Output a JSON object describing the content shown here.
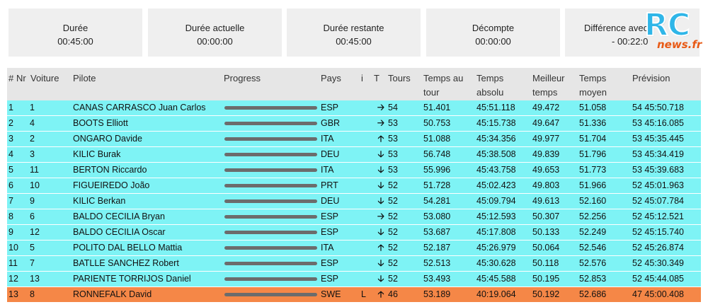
{
  "cards": [
    {
      "label": "Durée",
      "value": "00:45:00"
    },
    {
      "label": "Durée actuelle",
      "value": "00:00:00"
    },
    {
      "label": "Durée restante",
      "value": "00:45:00"
    },
    {
      "label": "Décompte",
      "value": "00:00:00"
    },
    {
      "label": "Différence avec",
      "value": "- 00:22:0"
    }
  ],
  "logo": {
    "rc": "RC",
    "news": "news.fr"
  },
  "table": {
    "headers": {
      "pos": "#",
      "nr": "Nr",
      "voiture": "Voiture",
      "pilote": "Pilote",
      "progress": "Progress",
      "pays": "Pays",
      "i": "i",
      "t": "T",
      "tours": "Tours",
      "temps_tour": "Temps au tour",
      "temps_absolu": "Temps absolu",
      "meilleur": "Meilleur temps",
      "moyen": "Temps moyen",
      "prevision": "Prévision"
    },
    "arrow_icons": {
      "up": "🡡",
      "down": "🡣",
      "right": "🡢"
    },
    "rows": [
      {
        "pos": "1",
        "nr": "1",
        "pilote": "CANAS CARRASCO Juan Carlos",
        "pays": "ESP",
        "i": "",
        "trend": "right",
        "tours": "54",
        "temps_tour": "51.401",
        "temps_absolu": "45:51.118",
        "meilleur": "49.472",
        "moyen": "51.058",
        "prevision": "54 45:50.718",
        "highlight": false
      },
      {
        "pos": "2",
        "nr": "4",
        "pilote": "BOOTS Elliott",
        "pays": "GBR",
        "i": "",
        "trend": "right",
        "tours": "53",
        "temps_tour": "50.753",
        "temps_absolu": "45:15.738",
        "meilleur": "49.647",
        "moyen": "51.336",
        "prevision": "53 45:16.085",
        "highlight": false
      },
      {
        "pos": "3",
        "nr": "2",
        "pilote": "ONGARO Davide",
        "pays": "ITA",
        "i": "",
        "trend": "up",
        "tours": "53",
        "temps_tour": "51.088",
        "temps_absolu": "45:34.356",
        "meilleur": "49.977",
        "moyen": "51.704",
        "prevision": "53 45:35.445",
        "highlight": false
      },
      {
        "pos": "4",
        "nr": "3",
        "pilote": "KILIC Burak",
        "pays": "DEU",
        "i": "",
        "trend": "down",
        "tours": "53",
        "temps_tour": "56.748",
        "temps_absolu": "45:38.508",
        "meilleur": "49.839",
        "moyen": "51.796",
        "prevision": "53 45:34.419",
        "highlight": false
      },
      {
        "pos": "5",
        "nr": "11",
        "pilote": "BERTON Riccardo",
        "pays": "ITA",
        "i": "",
        "trend": "down",
        "tours": "53",
        "temps_tour": "55.996",
        "temps_absolu": "45:43.758",
        "meilleur": "49.653",
        "moyen": "51.773",
        "prevision": "53 45:39.683",
        "highlight": false
      },
      {
        "pos": "6",
        "nr": "10",
        "pilote": "FIGUEIREDO João",
        "pays": "PRT",
        "i": "",
        "trend": "down",
        "tours": "52",
        "temps_tour": "51.728",
        "temps_absolu": "45:02.423",
        "meilleur": "49.803",
        "moyen": "51.966",
        "prevision": "52 45:01.963",
        "highlight": false
      },
      {
        "pos": "7",
        "nr": "9",
        "pilote": "KILIC Berkan",
        "pays": "DEU",
        "i": "",
        "trend": "down",
        "tours": "52",
        "temps_tour": "54.281",
        "temps_absolu": "45:09.794",
        "meilleur": "49.613",
        "moyen": "52.160",
        "prevision": "52 45:07.784",
        "highlight": false
      },
      {
        "pos": "8",
        "nr": "6",
        "pilote": "BALDO CECILIA Bryan",
        "pays": "ESP",
        "i": "",
        "trend": "right",
        "tours": "52",
        "temps_tour": "53.080",
        "temps_absolu": "45:12.593",
        "meilleur": "50.307",
        "moyen": "52.256",
        "prevision": "52 45:12.521",
        "highlight": false
      },
      {
        "pos": "9",
        "nr": "12",
        "pilote": "BALDO CECILIA Oscar",
        "pays": "ESP",
        "i": "",
        "trend": "down",
        "tours": "52",
        "temps_tour": "53.687",
        "temps_absolu": "45:17.808",
        "meilleur": "50.133",
        "moyen": "52.249",
        "prevision": "52 45:15.740",
        "highlight": false
      },
      {
        "pos": "10",
        "nr": "5",
        "pilote": "POLITO DAL BELLO Mattia",
        "pays": "ITA",
        "i": "",
        "trend": "up",
        "tours": "52",
        "temps_tour": "52.187",
        "temps_absolu": "45:26.979",
        "meilleur": "50.064",
        "moyen": "52.546",
        "prevision": "52 45:26.874",
        "highlight": false
      },
      {
        "pos": "11",
        "nr": "7",
        "pilote": "BATLLE SANCHEZ Robert",
        "pays": "ESP",
        "i": "",
        "trend": "down",
        "tours": "52",
        "temps_tour": "52.513",
        "temps_absolu": "45:30.628",
        "meilleur": "50.118",
        "moyen": "52.576",
        "prevision": "52 45:30.349",
        "highlight": false
      },
      {
        "pos": "12",
        "nr": "13",
        "pilote": "PARIENTE TORRIJOS Daniel",
        "pays": "ESP",
        "i": "",
        "trend": "down",
        "tours": "52",
        "temps_tour": "53.493",
        "temps_absolu": "45:45.588",
        "meilleur": "50.195",
        "moyen": "52.853",
        "prevision": "52 45:44.085",
        "highlight": false
      },
      {
        "pos": "13",
        "nr": "8",
        "pilote": "RONNEFALK David",
        "pays": "SWE",
        "i": "L",
        "trend": "up",
        "tours": "46",
        "temps_tour": "53.189",
        "temps_absolu": "40:19.064",
        "meilleur": "50.192",
        "moyen": "52.686",
        "prevision": "47 45:00.408",
        "highlight": true
      }
    ]
  }
}
